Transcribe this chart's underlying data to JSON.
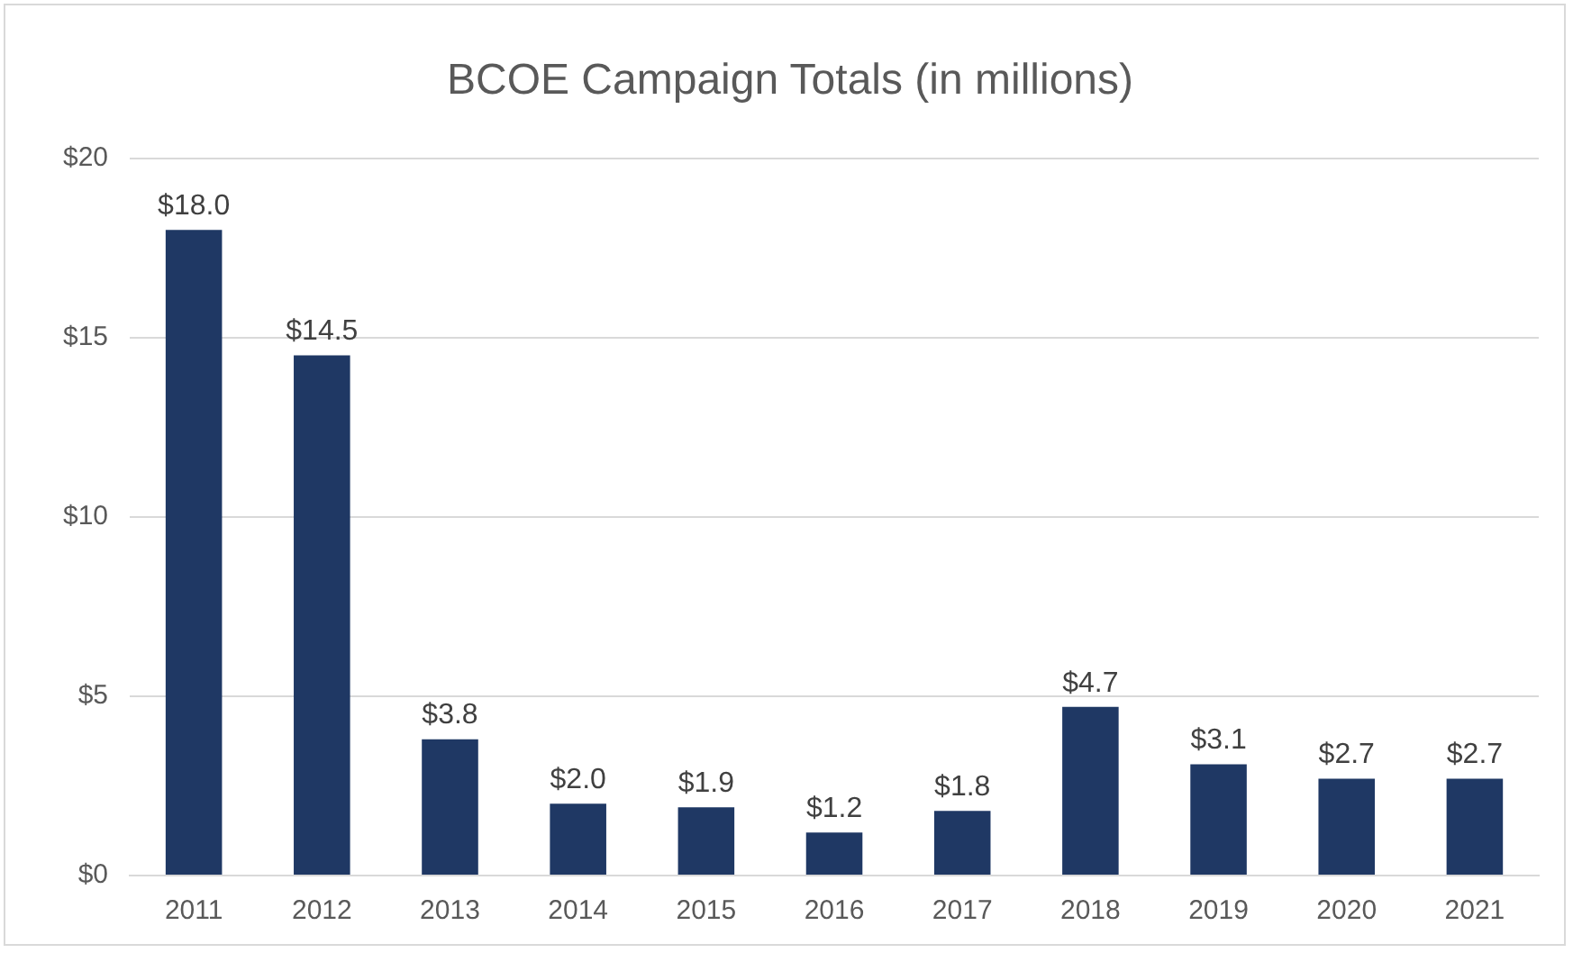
{
  "chart_data": {
    "type": "bar",
    "title": "BCOE Campaign Totals (in millions)",
    "categories": [
      "2011",
      "2012",
      "2013",
      "2014",
      "2015",
      "2016",
      "2017",
      "2018",
      "2019",
      "2020",
      "2021"
    ],
    "values": [
      18.0,
      14.5,
      3.8,
      2.0,
      1.9,
      1.2,
      1.8,
      4.7,
      3.1,
      2.7,
      2.7
    ],
    "value_labels": [
      "$18.0",
      "$14.5",
      "$3.8",
      "$2.0",
      "$1.9",
      "$1.2",
      "$1.8",
      "$4.7",
      "$3.1",
      "$2.7",
      "$2.7"
    ],
    "color": "#1f3864",
    "ylim": [
      0,
      20
    ],
    "yticks": [
      {
        "value": 0,
        "label": "$0"
      },
      {
        "value": 5,
        "label": "$5"
      },
      {
        "value": 10,
        "label": "$10"
      },
      {
        "value": 15,
        "label": "$15"
      },
      {
        "value": 20,
        "label": "$20"
      }
    ],
    "grid": "y",
    "legend": false
  }
}
